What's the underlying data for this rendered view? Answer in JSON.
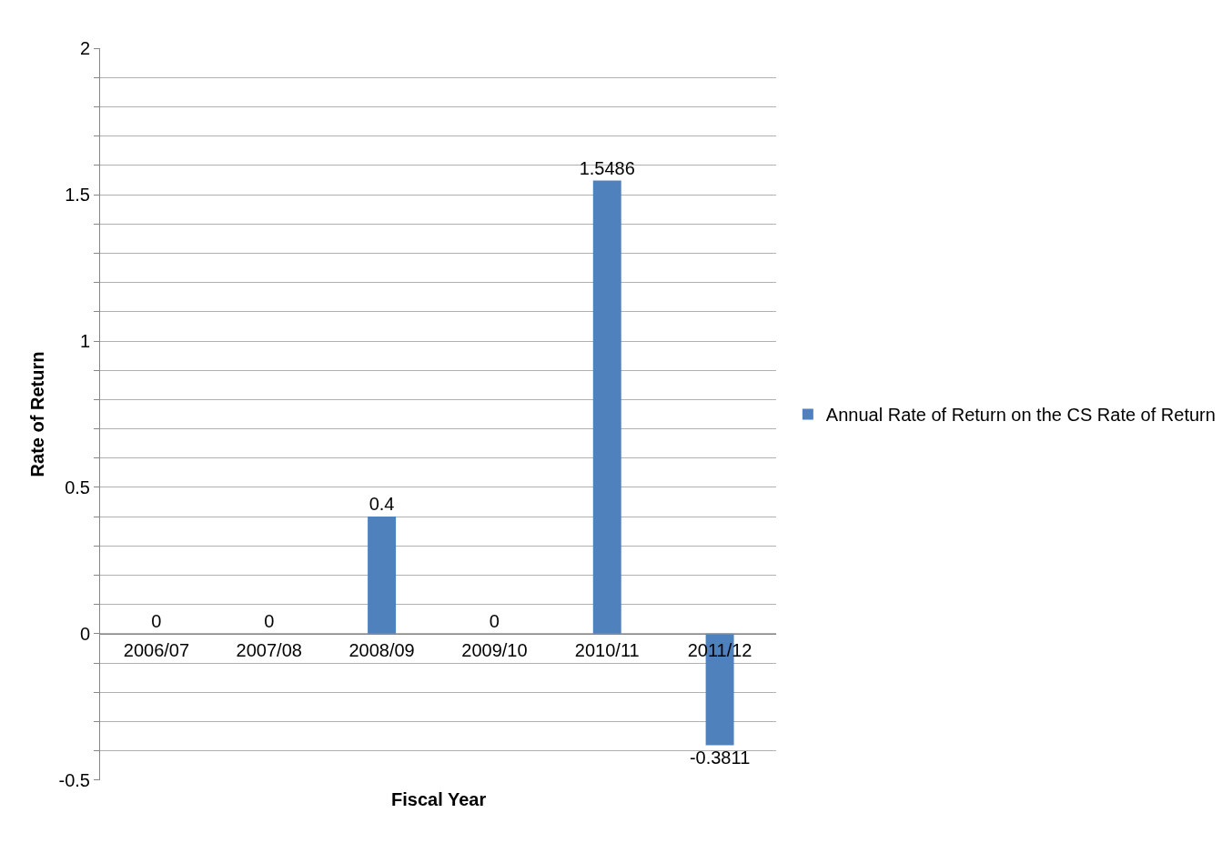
{
  "chart_data": {
    "type": "bar",
    "xlabel": "Fiscal Year",
    "ylabel": "Rate of Return",
    "categories": [
      "2006/07",
      "2007/08",
      "2008/09",
      "2009/10",
      "2010/11",
      "2011/12"
    ],
    "series": [
      {
        "name": "Annual Rate of Return on the CS Rate of Return",
        "color": "#4f81bd",
        "values": [
          0,
          0,
          0.4,
          0,
          1.5486,
          -0.3811
        ]
      }
    ],
    "ylim": [
      -0.5,
      2
    ],
    "yticks": [
      -0.5,
      {
        "value": -0.4,
        "label": null
      },
      {
        "value": -0.3,
        "label": null
      },
      {
        "value": -0.2,
        "label": null
      },
      {
        "value": -0.1,
        "label": null
      },
      0,
      {
        "value": 0.1,
        "label": null
      },
      {
        "value": 0.2,
        "label": null
      },
      {
        "value": 0.3,
        "label": null
      },
      {
        "value": 0.4,
        "label": null
      },
      0.5,
      {
        "value": 0.6,
        "label": null
      },
      {
        "value": 0.7,
        "label": null
      },
      {
        "value": 0.8,
        "label": null
      },
      {
        "value": 0.9,
        "label": null
      },
      1,
      {
        "value": 1.1,
        "label": null
      },
      {
        "value": 1.2,
        "label": null
      },
      {
        "value": 1.3,
        "label": null
      },
      {
        "value": 1.4,
        "label": null
      },
      1.5,
      {
        "value": 1.6,
        "label": null
      },
      {
        "value": 1.7,
        "label": null
      },
      {
        "value": 1.8,
        "label": null
      },
      {
        "value": 1.9,
        "label": null
      },
      2
    ],
    "grid": "y",
    "data_labels": true,
    "legend": "right"
  }
}
